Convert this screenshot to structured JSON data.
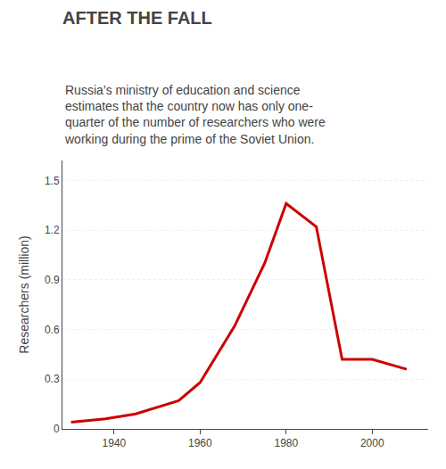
{
  "chart_data": {
    "type": "line",
    "title": "AFTER THE FALL",
    "subtitle": "Russia’s ministry of education and science\nestimates that the country now has only one-\nquarter of the number of researchers who were\nworking during the prime of the Soviet Union.",
    "x": [
      1930,
      1938,
      1945,
      1950,
      1955,
      1960,
      1968,
      1975,
      1980,
      1987,
      1993,
      2000,
      2008
    ],
    "values": [
      0.04,
      0.06,
      0.09,
      0.13,
      0.17,
      0.28,
      0.62,
      1.0,
      1.36,
      1.22,
      0.42,
      0.42,
      0.36
    ],
    "color": "#cc0000",
    "ylabel": "Researchers (million)",
    "xlim": [
      1928,
      2013
    ],
    "xticks": [
      1940,
      1960,
      1980,
      2000
    ],
    "ylim": [
      0,
      1.62
    ],
    "yticks": [
      0,
      0.3,
      0.6,
      0.9,
      1.2,
      1.5
    ],
    "grid": true
  }
}
